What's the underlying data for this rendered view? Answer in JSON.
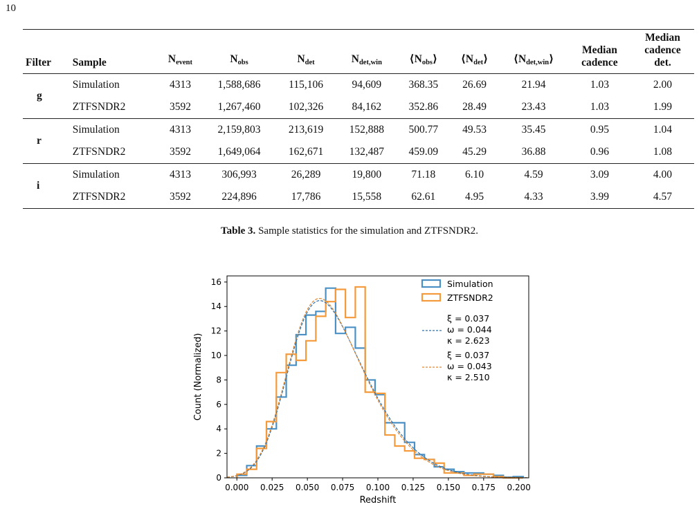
{
  "page_number": "10",
  "table": {
    "headers": {
      "filter": "Filter",
      "sample": "Sample",
      "n_event": {
        "base": "N",
        "sub": "event"
      },
      "n_obs": {
        "base": "N",
        "sub": "obs"
      },
      "n_det": {
        "base": "N",
        "sub": "det"
      },
      "n_det_win": {
        "base": "N",
        "sub": "det,win"
      },
      "mean_n_obs": {
        "base": "⟨N",
        "sub": "obs",
        "close": "⟩"
      },
      "mean_n_det": {
        "base": "⟨N",
        "sub": "det",
        "close": "⟩"
      },
      "mean_n_det_win": {
        "base": "⟨N",
        "sub": "det,win",
        "close": "⟩"
      },
      "median_cadence": {
        "line1": "Median",
        "line2": "cadence"
      },
      "median_cadence_det": {
        "line1": "Median",
        "line2": "cadence",
        "line3": "det."
      }
    },
    "groups": [
      {
        "filter": "g",
        "rows": [
          {
            "sample": "Simulation",
            "n_event": "4313",
            "n_obs": "1,588,686",
            "n_det": "115,106",
            "n_det_win": "94,609",
            "mean_obs": "368.35",
            "mean_det": "26.69",
            "mean_det_win": "21.94",
            "median_cad": "1.03",
            "median_cad_det": "2.00"
          },
          {
            "sample": "ZTFSNDR2",
            "n_event": "3592",
            "n_obs": "1,267,460",
            "n_det": "102,326",
            "n_det_win": "84,162",
            "mean_obs": "352.86",
            "mean_det": "28.49",
            "mean_det_win": "23.43",
            "median_cad": "1.03",
            "median_cad_det": "1.99"
          }
        ]
      },
      {
        "filter": "r",
        "rows": [
          {
            "sample": "Simulation",
            "n_event": "4313",
            "n_obs": "2,159,803",
            "n_det": "213,619",
            "n_det_win": "152,888",
            "mean_obs": "500.77",
            "mean_det": "49.53",
            "mean_det_win": "35.45",
            "median_cad": "0.95",
            "median_cad_det": "1.04"
          },
          {
            "sample": "ZTFSNDR2",
            "n_event": "3592",
            "n_obs": "1,649,064",
            "n_det": "162,671",
            "n_det_win": "132,487",
            "mean_obs": "459.09",
            "mean_det": "45.29",
            "mean_det_win": "36.88",
            "median_cad": "0.96",
            "median_cad_det": "1.08"
          }
        ]
      },
      {
        "filter": "i",
        "rows": [
          {
            "sample": "Simulation",
            "n_event": "4313",
            "n_obs": "306,993",
            "n_det": "26,289",
            "n_det_win": "19,800",
            "mean_obs": "71.18",
            "mean_det": "6.10",
            "mean_det_win": "4.59",
            "median_cad": "3.09",
            "median_cad_det": "4.00"
          },
          {
            "sample": "ZTFSNDR2",
            "n_event": "3592",
            "n_obs": "224,896",
            "n_det": "17,786",
            "n_det_win": "15,558",
            "mean_obs": "62.61",
            "mean_det": "4.95",
            "mean_det_win": "4.33",
            "median_cad": "3.99",
            "median_cad_det": "4.57"
          }
        ]
      }
    ]
  },
  "caption": {
    "label": "Table 3.",
    "text": " Sample statistics for the simulation and ZTFSNDR2."
  },
  "chart_data": {
    "type": "histogram",
    "xlabel": "Redshift",
    "ylabel": "Count (Normalized)",
    "xlim": [
      -0.007,
      0.207
    ],
    "ylim": [
      0,
      16.5
    ],
    "xticks": [
      "0.000",
      "0.025",
      "0.050",
      "0.075",
      "0.100",
      "0.125",
      "0.150",
      "0.175",
      "0.200"
    ],
    "yticks": [
      "0",
      "2",
      "4",
      "6",
      "8",
      "10",
      "12",
      "14",
      "16"
    ],
    "legend_position": "top-right",
    "bin_edges": [
      0.0,
      0.007,
      0.014,
      0.021,
      0.028,
      0.035,
      0.042,
      0.049,
      0.056,
      0.063,
      0.07,
      0.077,
      0.084,
      0.091,
      0.098,
      0.105,
      0.112,
      0.119,
      0.126,
      0.133,
      0.14,
      0.147,
      0.154,
      0.161,
      0.168,
      0.175,
      0.182,
      0.189,
      0.196,
      0.203
    ],
    "series": [
      {
        "name": "Simulation",
        "color": "#4a90c4",
        "values": [
          0.2,
          1.0,
          2.6,
          4.0,
          6.6,
          9.2,
          11.7,
          13.3,
          13.6,
          15.5,
          11.8,
          12.3,
          10.6,
          8.0,
          6.8,
          4.5,
          4.5,
          2.9,
          1.9,
          1.5,
          0.9,
          0.7,
          0.5,
          0.4,
          0.4,
          0.3,
          0.2,
          0.05,
          0.1
        ]
      },
      {
        "name": "ZTFSNDR2",
        "color": "#f59a3a",
        "values": [
          0.3,
          0.7,
          2.4,
          4.6,
          8.6,
          10.1,
          9.6,
          11.2,
          13.2,
          14.4,
          15.4,
          13.1,
          15.6,
          7.0,
          6.9,
          3.5,
          2.6,
          2.2,
          1.6,
          1.5,
          1.2,
          0.4,
          0.4,
          0.2,
          0.3,
          0.3,
          0.1,
          0.0,
          0.0
        ]
      }
    ],
    "fits": [
      {
        "color": "#2f6fa8",
        "labels": [
          "ξ = 0.037",
          "ω = 0.044",
          "κ = 2.623"
        ],
        "xi": 0.037,
        "omega": 0.044,
        "kappa": 2.623
      },
      {
        "color": "#e0872e",
        "labels": [
          "ξ = 0.037",
          "ω = 0.043",
          "κ = 2.510"
        ],
        "xi": 0.037,
        "omega": 0.043,
        "kappa": 2.51
      }
    ]
  }
}
